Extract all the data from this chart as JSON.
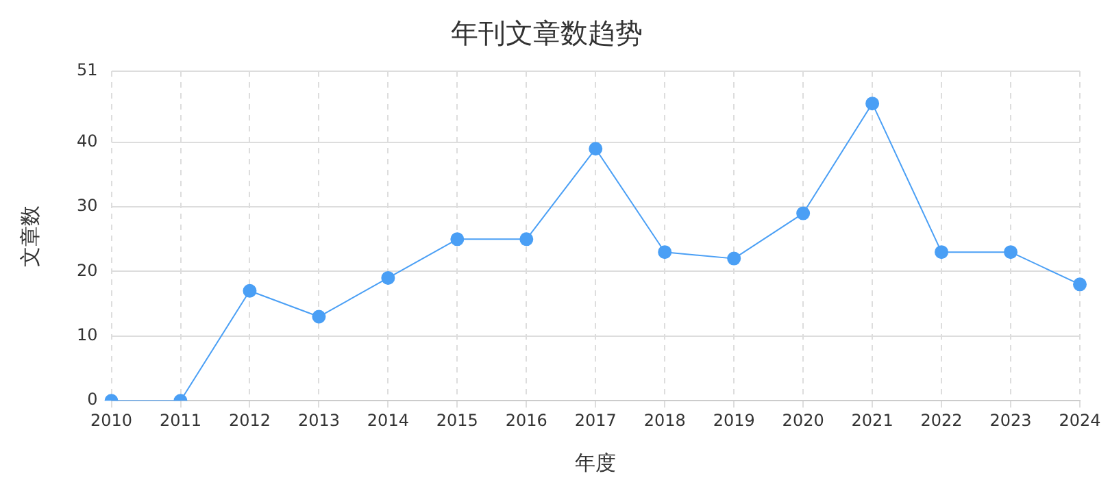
{
  "chart_data": {
    "type": "line",
    "title": "年刊文章数趋势",
    "xlabel": "年度",
    "ylabel": "文章数",
    "categories": [
      "2010",
      "2011",
      "2012",
      "2013",
      "2014",
      "2015",
      "2016",
      "2017",
      "2018",
      "2019",
      "2020",
      "2021",
      "2022",
      "2023",
      "2024"
    ],
    "series": [
      {
        "color": "#4a9ff5",
        "values": [
          0,
          0,
          17,
          13,
          19,
          25,
          25,
          39,
          23,
          22,
          29,
          46,
          23,
          23,
          18
        ]
      }
    ],
    "ylim": [
      0,
      51
    ],
    "yticks": [
      0,
      10,
      20,
      30,
      40,
      51
    ],
    "grid": true,
    "legend": false,
    "marker": "circle",
    "line_style": "solid"
  }
}
